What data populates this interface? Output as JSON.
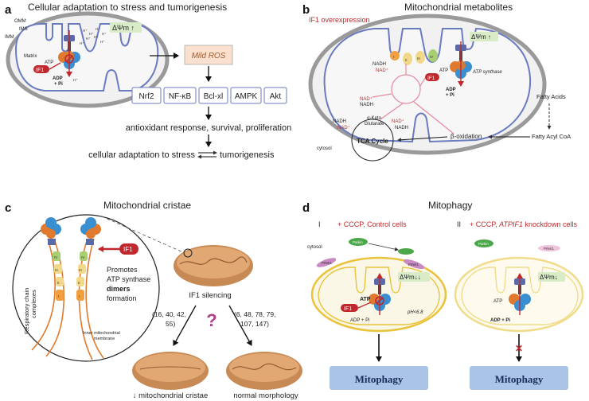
{
  "panels": {
    "a": {
      "letter": "a",
      "title": "Cellular adaptation to stress and tumorigenesis",
      "labels": {
        "omm": "OMM",
        "ims": "IMS",
        "imm": "IMM",
        "matrix": "Matrix",
        "psi": "ΔΨm ↑",
        "if1": "IF1",
        "atp": "ATP",
        "adp": "ADP",
        "pi": "+ Pi",
        "hplus": "H⁺"
      },
      "ros": "Mild ROS",
      "targets": [
        "Nrf2",
        "NF-κB",
        "Bcl-xl",
        "AMPK",
        "Akt"
      ],
      "response": "antioxidant response, survival, proliferation",
      "outcome_left": "cellular adaptation to stress",
      "outcome_right": "tumorigenesis"
    },
    "b": {
      "letter": "b",
      "title": "Mitochondrial metabolites",
      "overexpression": "IF1 overexpression",
      "labels": {
        "psi": "ΔΨm ↑",
        "nadh": "NADH",
        "nad": "NAD⁺",
        "atp": "ATP",
        "if1": "IF1",
        "adp": "ADP",
        "pi": "+ Pi",
        "atp_synthase": "ATP synthase",
        "alpha_keto": "α-Keto",
        "glutarate": "Glutarate",
        "tca": "TCA Cycle",
        "beta_ox": "β-oxidation",
        "fatty_acids": "Fatty Acids",
        "fatty_acyl": "Fatty Acyl CoA",
        "cytosol": "cytosol",
        "complexes": [
          "I",
          "II",
          "III",
          "IV"
        ]
      }
    },
    "c": {
      "letter": "c",
      "title": "Mitochondrial cristae",
      "if1": "IF1",
      "promotes": [
        "Promotes",
        "ATP synthase",
        "dimers",
        "formation"
      ],
      "resp_chain": [
        "Respiratory chain",
        "complexes"
      ],
      "inner_membrane": [
        "Inner mitochondrial",
        "membrane"
      ],
      "silencing": "IF1 silencing",
      "refs_left": [
        "(16, 40, 42,",
        "55)"
      ],
      "refs_right": [
        "(6, 48, 78, 79,",
        "107, 147)"
      ],
      "question": "?",
      "result_left": "↓ mitochondrial cristae",
      "result_right": "normal morphology",
      "complex_numerals": [
        "IV",
        "III",
        "II",
        "I"
      ]
    },
    "d": {
      "letter": "d",
      "title": "Mitophagy",
      "left": {
        "roman": "I",
        "condition": "+ CCCP, Control cells",
        "cytosol": "cytosol",
        "parkin": "Parkin",
        "pink1": "PINK1",
        "psi": "ΔΨm↓↓",
        "if1": "IF1",
        "atp": "ATP",
        "adp": "ADP + Pi",
        "ph": "pH<6.8",
        "result": "Mitophagy"
      },
      "right": {
        "roman": "II",
        "condition_prefix": "+ CCCP, ",
        "condition_gene": "ATPIF1",
        "condition_suffix": " knockdown cells",
        "parkin": "Parkin",
        "pink1": "PINK1",
        "psi": "ΔΨm↓",
        "atp": "ATP",
        "adp": "ADP + Pi",
        "result": "Mitophagy",
        "blocked": "✕"
      }
    }
  },
  "colors": {
    "red": "#c0282d",
    "membrane_blue": "#6a7bbf",
    "mito_yellow": "#e9c33b",
    "mito_brown": "#c88a55",
    "box_blue": "#a9c4e6",
    "pink": "#e58aa0",
    "green_psi": "#d8ecc8"
  }
}
